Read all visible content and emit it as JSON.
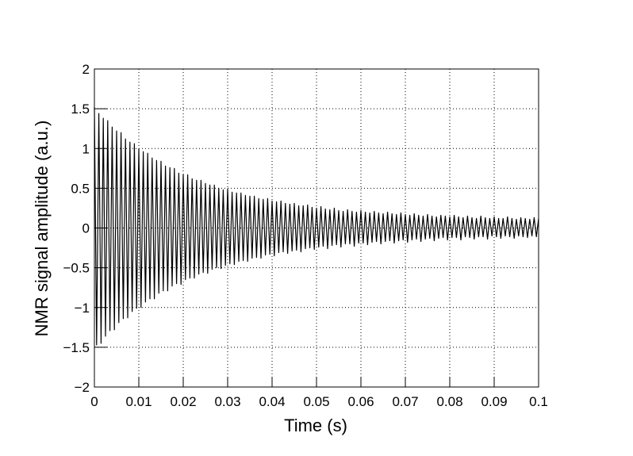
{
  "chart_data": {
    "type": "line",
    "x_label": "Time (s)",
    "y_label": "NMR signal amplitude (a.u.)",
    "color": "#000000",
    "grid": true,
    "xlim": [
      0,
      0.1
    ],
    "ylim": [
      -2,
      2
    ],
    "xticks": [
      0,
      0.01,
      0.02,
      0.03,
      0.04,
      0.05,
      0.06,
      0.07,
      0.08,
      0.09,
      0.1
    ],
    "yticks": [
      {
        "value": -2,
        "label": "−2"
      },
      {
        "value": -1.5,
        "label": "−1.5"
      },
      {
        "value": -1,
        "label": "−1"
      },
      {
        "value": -0.5,
        "label": "−0.5"
      },
      0,
      0.5,
      1,
      1.5,
      2
    ],
    "x": [
      0,
      0.0005,
      0.001,
      0.0015,
      0.002,
      0.0025,
      0.003,
      0.0035,
      0.004,
      0.0045,
      0.005,
      0.0055,
      0.006,
      0.0065,
      0.007,
      0.0075,
      0.008,
      0.0085,
      0.009,
      0.0095,
      0.01,
      0.0105,
      0.011,
      0.0115,
      0.012,
      0.0125,
      0.013,
      0.0135,
      0.014,
      0.0145,
      0.015,
      0.0155,
      0.016,
      0.0165,
      0.017,
      0.0175,
      0.018,
      0.0185,
      0.019,
      0.0195,
      0.02,
      0.0205,
      0.021,
      0.0215,
      0.022,
      0.0225,
      0.023,
      0.0235,
      0.024,
      0.0245,
      0.025,
      0.0255,
      0.026,
      0.0265,
      0.027,
      0.0275,
      0.028,
      0.0285,
      0.029,
      0.0295,
      0.03,
      0.0305,
      0.031,
      0.0315,
      0.032,
      0.0325,
      0.033,
      0.0335,
      0.034,
      0.0345,
      0.035,
      0.0355,
      0.036,
      0.0365,
      0.037,
      0.0375,
      0.038,
      0.0385,
      0.039,
      0.0395,
      0.04,
      0.0405,
      0.041,
      0.0415,
      0.042,
      0.0425,
      0.043,
      0.0435,
      0.044,
      0.0445,
      0.045,
      0.0455,
      0.046,
      0.0465,
      0.047,
      0.0475,
      0.048,
      0.0485,
      0.049,
      0.0495,
      0.05,
      0.0505,
      0.051,
      0.0515,
      0.052,
      0.0525,
      0.053,
      0.0535,
      0.054,
      0.0545,
      0.055,
      0.0555,
      0.056,
      0.0565,
      0.057,
      0.0575,
      0.058,
      0.0585,
      0.059,
      0.0595,
      0.06,
      0.0605,
      0.061,
      0.0615,
      0.062,
      0.0625,
      0.063,
      0.0635,
      0.064,
      0.0645,
      0.065,
      0.0655,
      0.066,
      0.0665,
      0.067,
      0.0675,
      0.068,
      0.0685,
      0.069,
      0.0695,
      0.07,
      0.0705,
      0.071,
      0.0715,
      0.072,
      0.0725,
      0.073,
      0.0735,
      0.074,
      0.0745,
      0.075,
      0.0755,
      0.076,
      0.0765,
      0.077,
      0.0775,
      0.078,
      0.0785,
      0.079,
      0.0795,
      0.08,
      0.0805,
      0.081,
      0.0815,
      0.082,
      0.0825,
      0.083,
      0.0835,
      0.084,
      0.0845,
      0.085,
      0.0855,
      0.086,
      0.0865,
      0.087,
      0.0875,
      0.088,
      0.0885,
      0.089,
      0.0895,
      0.09,
      0.0905,
      0.091,
      0.0915,
      0.092,
      0.0925,
      0.093,
      0.0935,
      0.094,
      0.0945,
      0.095,
      0.0955,
      0.096,
      0.0965,
      0.097,
      0.0975,
      0.098,
      0.0985,
      0.099,
      0.0995,
      0.1
    ],
    "values": [
      1.52,
      -1.47,
      1.44,
      -1.45,
      1.38,
      -1.36,
      1.35,
      -1.29,
      1.27,
      -1.28,
      1.22,
      -1.19,
      1.2,
      -1.14,
      1.12,
      -1.13,
      1.08,
      -1.05,
      1.06,
      -1.01,
      0.99,
      -1.0,
      0.96,
      -0.93,
      0.94,
      -0.89,
      0.88,
      -0.89,
      0.85,
      -0.82,
      0.84,
      -0.79,
      0.78,
      -0.79,
      0.76,
      -0.73,
      0.75,
      -0.7,
      0.69,
      -0.71,
      0.67,
      -0.65,
      0.67,
      -0.63,
      0.62,
      -0.63,
      0.6,
      -0.58,
      0.6,
      -0.56,
      0.56,
      -0.57,
      0.54,
      -0.52,
      0.54,
      -0.5,
      0.5,
      -0.51,
      0.48,
      -0.47,
      0.49,
      -0.45,
      0.45,
      -0.46,
      0.44,
      -0.42,
      0.44,
      -0.41,
      0.41,
      -0.42,
      0.4,
      -0.38,
      0.4,
      -0.37,
      0.37,
      -0.38,
      0.36,
      -0.34,
      0.37,
      -0.33,
      0.34,
      -0.35,
      0.33,
      -0.31,
      0.34,
      -0.3,
      0.31,
      -0.32,
      0.3,
      -0.29,
      0.31,
      -0.28,
      0.28,
      -0.3,
      0.28,
      -0.26,
      0.29,
      -0.25,
      0.26,
      -0.27,
      0.25,
      -0.24,
      0.27,
      -0.23,
      0.24,
      -0.26,
      0.23,
      -0.22,
      0.25,
      -0.21,
      0.22,
      -0.24,
      0.21,
      -0.2,
      0.23,
      -0.2,
      0.21,
      -0.23,
      0.2,
      -0.19,
      0.22,
      -0.19,
      0.2,
      -0.21,
      0.19,
      -0.18,
      0.21,
      -0.17,
      0.19,
      -0.2,
      0.18,
      -0.17,
      0.2,
      -0.16,
      0.18,
      -0.19,
      0.17,
      -0.16,
      0.19,
      -0.15,
      0.17,
      -0.18,
      0.16,
      -0.15,
      0.18,
      -0.14,
      0.16,
      -0.17,
      0.15,
      -0.14,
      0.17,
      -0.13,
      0.15,
      -0.16,
      0.14,
      -0.13,
      0.16,
      -0.12,
      0.15,
      -0.15,
      0.14,
      -0.12,
      0.16,
      -0.12,
      0.14,
      -0.15,
      0.13,
      -0.11,
      0.15,
      -0.12,
      0.13,
      -0.14,
      0.12,
      -0.11,
      0.15,
      -0.11,
      0.13,
      -0.14,
      0.12,
      -0.1,
      0.14,
      -0.11,
      0.12,
      -0.13,
      0.12,
      -0.1,
      0.14,
      -0.11,
      0.12,
      -0.13,
      0.11,
      -0.1,
      0.13,
      -0.11,
      0.12,
      -0.12,
      0.11,
      -0.1,
      0.13,
      -0.11,
      0.12
    ]
  }
}
